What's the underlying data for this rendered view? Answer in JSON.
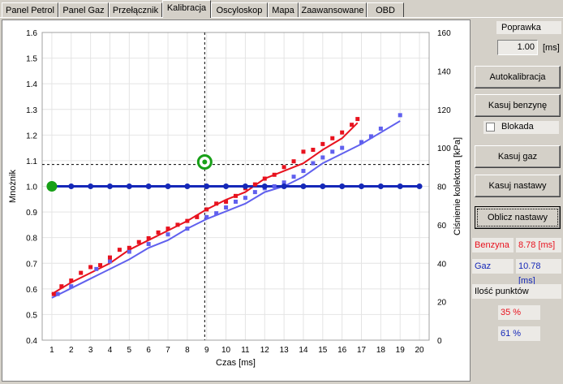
{
  "tabs": [
    "Panel Petrol",
    "Panel Gaz",
    "Przełącznik",
    "Kalibracja",
    "Oscyloskop",
    "Mapa",
    "Zaawansowane",
    "OBD"
  ],
  "active_tab": "Kalibracja",
  "right_panel": {
    "poprawka_label": "Poprawka",
    "poprawka_value": "1.00",
    "poprawka_unit": "[ms]",
    "autokalibracja": "Autokalibracja",
    "kasuj_benzyne": "Kasuj benzynę",
    "blokada": "Blokada",
    "kasuj_gaz": "Kasuj gaz",
    "kasuj_nastawy": "Kasuj nastawy",
    "oblicz_nastawy": "Oblicz nastawy",
    "benzyna_label": "Benzyna",
    "benzyna_value": "8.78 [ms]",
    "gaz_label": "Gaz",
    "gaz_value": "10.78 [ms]",
    "ilosc_punktow_label": "Ilość punktów",
    "benzyna_points": "35 %",
    "gaz_points": "61 %"
  },
  "colors": {
    "benzyna": "#e8121e",
    "gaz": "#6060ee",
    "multiplier": "#1528b8",
    "marker": "#18a018"
  },
  "chart_data": {
    "type": "line",
    "xlabel": "Czas [ms]",
    "ylabel_left": "Mnożnik",
    "ylabel_right": "Ciśnienie kolektora [kPa]",
    "x_ticks": [
      1,
      2,
      3,
      4,
      5,
      6,
      7,
      8,
      9,
      10,
      11,
      12,
      13,
      14,
      15,
      16,
      17,
      18,
      19,
      20
    ],
    "y_left_ticks": [
      "0.4",
      "0.5",
      "0.6",
      "0.7",
      "0.8",
      "0.9",
      "1.0",
      "1.1",
      "1.2",
      "1.3",
      "1.4",
      "1.5",
      "1.6"
    ],
    "y_right_ticks": [
      "0",
      "20",
      "40",
      "60",
      "80",
      "100",
      "120",
      "140",
      "160"
    ],
    "xlim": [
      0.5,
      20.5
    ],
    "ylim_left": [
      0.4,
      1.6
    ],
    "ylim_right": [
      0,
      160
    ],
    "crosshair": {
      "x": 8.9,
      "y_left": 1.085
    },
    "selected_point": {
      "x": 8.9,
      "y_left": 1.095
    },
    "start_point": {
      "x": 1.0,
      "y_left": 1.0
    },
    "multiplier_series": {
      "name": "",
      "x": [
        1,
        2,
        3,
        4,
        5,
        6,
        7,
        8,
        9,
        10,
        11,
        12,
        13,
        14,
        15,
        16,
        17,
        18,
        19,
        20
      ],
      "y_left": [
        1.0,
        1.0,
        1.0,
        1.0,
        1.0,
        1.0,
        1.0,
        1.0,
        1.0,
        1.0,
        1.0,
        1.0,
        1.0,
        1.0,
        1.0,
        1.0,
        1.0,
        1.0,
        1.0,
        1.0
      ]
    },
    "series": [
      {
        "name": "Benzyna",
        "points": [
          [
            1.1,
            24
          ],
          [
            1.5,
            28
          ],
          [
            2.0,
            31
          ],
          [
            2.5,
            35
          ],
          [
            3.0,
            38
          ],
          [
            3.5,
            39
          ],
          [
            4.0,
            43
          ],
          [
            4.5,
            47
          ],
          [
            5.0,
            48
          ],
          [
            5.5,
            51
          ],
          [
            6.0,
            53
          ],
          [
            6.5,
            56
          ],
          [
            7.0,
            58
          ],
          [
            7.5,
            60
          ],
          [
            8.0,
            62
          ],
          [
            8.5,
            64
          ],
          [
            9.0,
            68
          ],
          [
            9.5,
            71
          ],
          [
            10.0,
            72
          ],
          [
            10.5,
            75
          ],
          [
            11.0,
            79
          ],
          [
            11.5,
            81
          ],
          [
            12.0,
            84
          ],
          [
            12.5,
            86
          ],
          [
            13.0,
            90
          ],
          [
            13.5,
            93
          ],
          [
            14.0,
            98
          ],
          [
            14.5,
            99
          ],
          [
            15.0,
            102
          ],
          [
            15.5,
            105
          ],
          [
            16.0,
            108
          ],
          [
            16.5,
            112
          ],
          [
            16.8,
            115
          ]
        ],
        "line": [
          [
            1,
            24
          ],
          [
            2,
            30
          ],
          [
            3,
            35
          ],
          [
            4,
            40
          ],
          [
            5,
            47
          ],
          [
            6,
            52
          ],
          [
            7,
            57
          ],
          [
            8,
            62
          ],
          [
            9,
            68
          ],
          [
            10,
            73
          ],
          [
            11,
            77
          ],
          [
            12,
            84
          ],
          [
            13,
            88
          ],
          [
            14,
            92
          ],
          [
            15,
            99
          ],
          [
            16,
            105
          ],
          [
            16.8,
            113
          ]
        ]
      },
      {
        "name": "Gaz",
        "points": [
          [
            1.3,
            24
          ],
          [
            2.0,
            28
          ],
          [
            3.3,
            37
          ],
          [
            4.0,
            41
          ],
          [
            5.0,
            46
          ],
          [
            6.0,
            50
          ],
          [
            7.0,
            55
          ],
          [
            8.0,
            58
          ],
          [
            9.0,
            64
          ],
          [
            9.5,
            66
          ],
          [
            10.0,
            69
          ],
          [
            10.5,
            72
          ],
          [
            11.0,
            74
          ],
          [
            11.5,
            77
          ],
          [
            12.0,
            79
          ],
          [
            12.5,
            80
          ],
          [
            13.0,
            82
          ],
          [
            13.5,
            85
          ],
          [
            14.0,
            88
          ],
          [
            14.5,
            92
          ],
          [
            15.0,
            95
          ],
          [
            15.5,
            98
          ],
          [
            16.0,
            100
          ],
          [
            17.0,
            103
          ],
          [
            17.5,
            106
          ],
          [
            18.0,
            110
          ],
          [
            19.0,
            117
          ]
        ],
        "line": [
          [
            1,
            22
          ],
          [
            2,
            27
          ],
          [
            3,
            32
          ],
          [
            4,
            37
          ],
          [
            5,
            42
          ],
          [
            6,
            48
          ],
          [
            7,
            52
          ],
          [
            8,
            58
          ],
          [
            9,
            63
          ],
          [
            10,
            67
          ],
          [
            11,
            71
          ],
          [
            12,
            77
          ],
          [
            13,
            80
          ],
          [
            14,
            85
          ],
          [
            15,
            92
          ],
          [
            16,
            97
          ],
          [
            17,
            102
          ],
          [
            18,
            108
          ],
          [
            19,
            114
          ]
        ]
      }
    ]
  }
}
